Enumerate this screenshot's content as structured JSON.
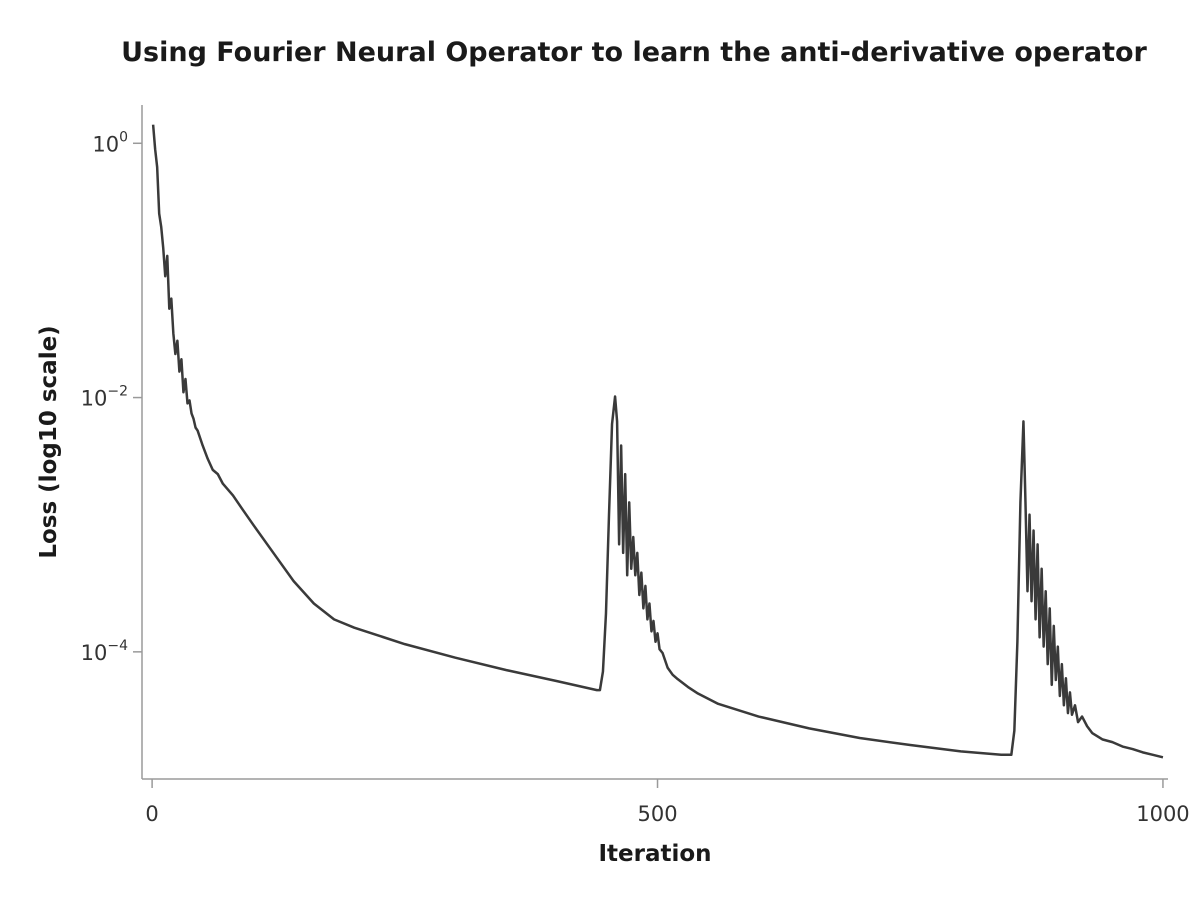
{
  "chart_data": {
    "type": "line",
    "title": "Using Fourier Neural Operator to learn the anti-derivative operator",
    "xlabel": "Iteration",
    "ylabel": "Loss (log10 scale)",
    "xlim": [
      -10,
      1005
    ],
    "ylim": [
      1e-05,
      2
    ],
    "yscale": "log10",
    "grid": false,
    "legend": "none",
    "line_color": "#3a3a3a",
    "x_ticks": [
      {
        "value": 0,
        "label": "0"
      },
      {
        "value": 500,
        "label": "500"
      },
      {
        "value": 1000,
        "label": "1000"
      }
    ],
    "y_ticks": [
      {
        "value": 1,
        "base": "10",
        "exp": "0"
      },
      {
        "value": 0.01,
        "base": "10",
        "exp": "−2"
      },
      {
        "value": 0.0001,
        "base": "10",
        "exp": "−4"
      }
    ],
    "series": [
      {
        "x": [
          1,
          3,
          5,
          7,
          9,
          11,
          13,
          15,
          17,
          19,
          21,
          23,
          25,
          27,
          29,
          31,
          33,
          35,
          37,
          39,
          41,
          43,
          45,
          50,
          55,
          60,
          65,
          70,
          80,
          90,
          100,
          120,
          140,
          160,
          180,
          200,
          250,
          300,
          350,
          400,
          440,
          443,
          446,
          449,
          452,
          455,
          458,
          460,
          462,
          464,
          466,
          468,
          470,
          472,
          474,
          476,
          478,
          480,
          482,
          484,
          486,
          488,
          490,
          492,
          494,
          496,
          498,
          500,
          502,
          505,
          510,
          515,
          520,
          530,
          540,
          560,
          600,
          650,
          700,
          750,
          800,
          840,
          850,
          853,
          856,
          859,
          862,
          864,
          866,
          868,
          870,
          872,
          874,
          876,
          878,
          880,
          882,
          884,
          886,
          888,
          890,
          892,
          894,
          896,
          898,
          900,
          902,
          904,
          906,
          908,
          910,
          913,
          916,
          920,
          925,
          930,
          940,
          950,
          960,
          970,
          980,
          990,
          1000
        ],
        "y": [
          1.4,
          0.9,
          0.65,
          0.28,
          0.22,
          0.15,
          0.09,
          0.13,
          0.05,
          0.06,
          0.032,
          0.022,
          0.028,
          0.016,
          0.02,
          0.011,
          0.014,
          0.009,
          0.0095,
          0.0075,
          0.0068,
          0.0058,
          0.0055,
          0.0042,
          0.0033,
          0.0027,
          0.0025,
          0.0021,
          0.0017,
          0.0013,
          0.001,
          0.0006,
          0.00036,
          0.00024,
          0.00018,
          0.000155,
          0.000115,
          9e-05,
          7.2e-05,
          5.9e-05,
          5e-05,
          5e-05,
          7e-05,
          0.0002,
          0.0012,
          0.0062,
          0.0102,
          0.0065,
          0.0007,
          0.0042,
          0.0006,
          0.0025,
          0.0004,
          0.0015,
          0.00045,
          0.0008,
          0.0004,
          0.0006,
          0.00028,
          0.00042,
          0.00022,
          0.00033,
          0.00018,
          0.00024,
          0.000145,
          0.000175,
          0.00012,
          0.00014,
          0.000105,
          9.8e-05,
          7.5e-05,
          6.6e-05,
          6.1e-05,
          5.3e-05,
          4.7e-05,
          3.9e-05,
          3.1e-05,
          2.5e-05,
          2.1e-05,
          1.85e-05,
          1.65e-05,
          1.55e-05,
          1.55e-05,
          2.4e-05,
          0.00012,
          0.0015,
          0.0065,
          0.0015,
          0.0003,
          0.0012,
          0.00025,
          0.0009,
          0.00018,
          0.0007,
          0.00013,
          0.00045,
          0.00011,
          0.0003,
          8e-05,
          0.00022,
          5.5e-05,
          0.00016,
          6e-05,
          0.00011,
          4.5e-05,
          8e-05,
          3.8e-05,
          6.2e-05,
          3.3e-05,
          4.8e-05,
          3.2e-05,
          3.8e-05,
          2.8e-05,
          3.1e-05,
          2.6e-05,
          2.3e-05,
          2.05e-05,
          1.95e-05,
          1.8e-05,
          1.72e-05,
          1.62e-05,
          1.55e-05,
          1.48e-05
        ]
      }
    ]
  }
}
